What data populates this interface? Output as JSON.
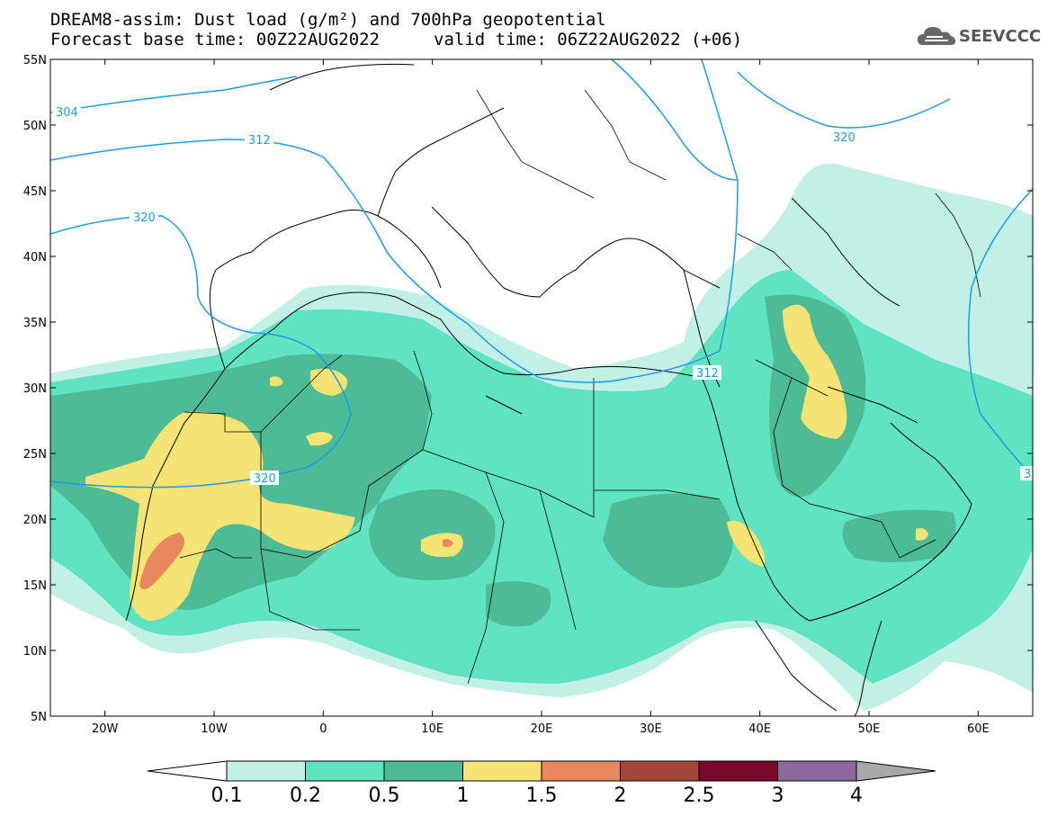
{
  "header": {
    "line1": "DREAM8-assim: Dust load (g/m²) and 700hPa geopotential",
    "line2_left": "Forecast base time: 00Z22AUG2022",
    "line2_right": "valid time: 06Z22AUG2022 (+06)"
  },
  "logo": {
    "text": "SEEVCCC",
    "icon": "cloud-icon"
  },
  "axes": {
    "lat_labels": [
      "55N",
      "50N",
      "45N",
      "40N",
      "35N",
      "30N",
      "25N",
      "20N",
      "15N",
      "10N",
      "5N"
    ],
    "lon_labels": [
      "20W",
      "10W",
      "0",
      "10E",
      "20E",
      "30E",
      "40E",
      "50E",
      "60E"
    ],
    "lon_range": [
      -25,
      65
    ],
    "lat_range": [
      5,
      55
    ]
  },
  "contours": {
    "labels": [
      "304",
      "312",
      "320",
      "320",
      "320",
      "312",
      "3"
    ]
  },
  "colorbar": {
    "ticks": [
      "0.1",
      "0.2",
      "0.5",
      "1",
      "1.5",
      "2",
      "2.5",
      "3",
      "4"
    ],
    "colors": [
      "#c0f0e6",
      "#5fe3c0",
      "#4dbb96",
      "#f5e474",
      "#e8875e",
      "#a8453a",
      "#7a0a2a",
      "#8c6a9e"
    ],
    "under_color": "#ffffff",
    "over_color": "#a8a8a8"
  },
  "palette": {
    "c1": "#c0f0e6",
    "c2": "#5fe3c0",
    "c3": "#4dbb96",
    "c4": "#f5e474",
    "c5": "#e8875e",
    "contour": "#1e9be6"
  }
}
